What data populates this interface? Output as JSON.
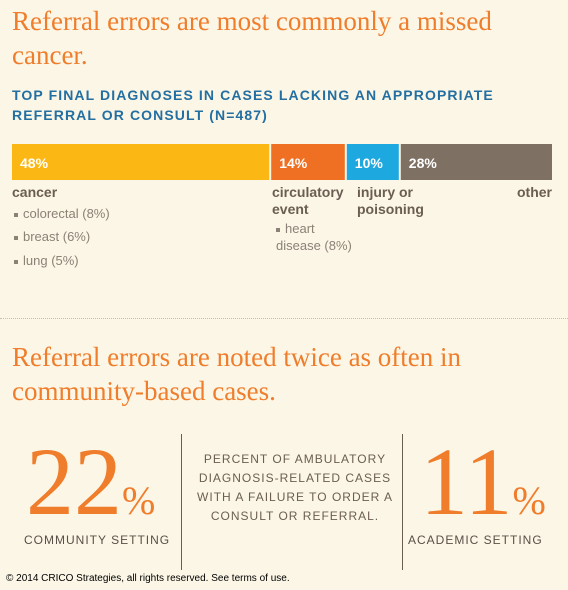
{
  "headline1": "Referral errors are most commonly a missed cancer.",
  "subheading": "TOP FINAL DIAGNOSES IN CASES LACKING AN APPROPRIATE REFERRAL OR CONSULT (N=487)",
  "chart_data": {
    "type": "bar",
    "orientation": "horizontal-stacked",
    "title": "TOP FINAL DIAGNOSES IN CASES LACKING AN APPROPRIATE REFERRAL OR CONSULT (N=487)",
    "unit": "%",
    "series": [
      {
        "name": "cancer",
        "value": 48,
        "label": "48%",
        "color": "#fbb713",
        "details": [
          "colorectal (8%)",
          "breast (6%)",
          "lung (5%)"
        ]
      },
      {
        "name": "circulatory event",
        "value": 14,
        "label": "14%",
        "color": "#ef7023",
        "details": [
          "heart disease (8%)"
        ]
      },
      {
        "name": "injury or poisoning",
        "value": 10,
        "label": "10%",
        "color": "#1ea8e0",
        "details": []
      },
      {
        "name": "other",
        "value": 28,
        "label": "28%",
        "color": "#7f7064",
        "details": []
      }
    ]
  },
  "categories": {
    "cancer": "cancer",
    "cancer_details": [
      "colorectal (8%)",
      "breast (6%)",
      "lung (5%)"
    ],
    "circulatory": "circulatory event",
    "circulatory_details": "heart disease (8%)",
    "injury": "injury or poisoning",
    "other": "other"
  },
  "headline2": "Referral errors are noted twice as often in community-based cases.",
  "stats": {
    "community": {
      "value": "22",
      "symbol": "%",
      "label": "COMMUNITY SETTING"
    },
    "center": "PERCENT OF AMBULATORY DIAGNOSIS-RELATED CASES WITH A FAILURE TO ORDER A CONSULT OR REFERRAL.",
    "academic": {
      "value": "11",
      "symbol": "%",
      "label": "ACADEMIC SETTING"
    }
  },
  "colors": {
    "accent": "#ef7d2b",
    "heading_blue": "#236fa2",
    "background": "#fbf6e6"
  },
  "footer": "© 2014 CRICO Strategies, all rights reserved. See terms of use."
}
